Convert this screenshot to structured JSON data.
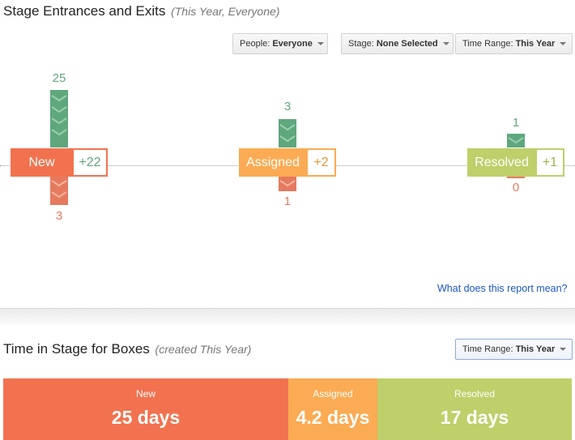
{
  "colors": {
    "new": "#f2724f",
    "assigned": "#fbab53",
    "resolved": "#bfcf6a",
    "entrance": "#5fa77d",
    "exit": "#e57a5f",
    "link": "#1a57c9"
  },
  "section1": {
    "title": "Stage Entrances and Exits",
    "subtitle": "(This Year, Everyone)",
    "filters": {
      "people_label": "People:",
      "people_value": "Everyone",
      "stage_label": "Stage:",
      "stage_value": "None Selected",
      "time_label": "Time Range:",
      "time_value": "This Year"
    },
    "stages": [
      {
        "name": "New",
        "entrances": "25",
        "exits": "3",
        "net": "+22"
      },
      {
        "name": "Assigned",
        "entrances": "3",
        "exits": "1",
        "net": "+2"
      },
      {
        "name": "Resolved",
        "entrances": "1",
        "exits": "0",
        "net": "+1"
      }
    ],
    "help_link": "What does this report mean?"
  },
  "section2": {
    "title": "Time in Stage for Boxes",
    "subtitle": "(created This Year)",
    "time_label": "Time Range:",
    "time_value": "This Year",
    "segments": [
      {
        "label": "New",
        "value": "25 days"
      },
      {
        "label": "Assigned",
        "value": "4.2 days"
      },
      {
        "label": "Resolved",
        "value": "17 days"
      }
    ]
  }
}
